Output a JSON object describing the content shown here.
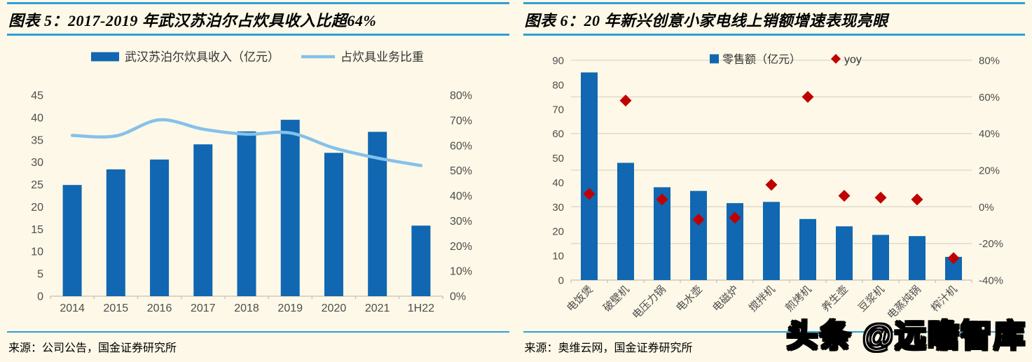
{
  "page": {
    "background": "#FDF8E7",
    "accent_color": "#2E9FD9"
  },
  "panels": [
    {
      "title": "图表 5：2017-2019 年武汉苏泊尔占炊具收入比超64%",
      "source": "来源：公司公告，国金证券研究所"
    },
    {
      "title": "图表 6：20 年新兴创意小家电线上销额增速表现亮眼",
      "source": "来源：奥维云网，国金证券研究所"
    }
  ],
  "watermark": "头条 @远瞻智库",
  "chart_data": [
    {
      "type": "bar",
      "title": "2017-2019 年武汉苏泊尔占炊具收入比超64%",
      "categories": [
        "2014",
        "2015",
        "2016",
        "2017",
        "2018",
        "2019",
        "2020",
        "2021",
        "1H22"
      ],
      "series": [
        {
          "name": "武汉苏泊尔炊具收入（亿元）",
          "type": "bar",
          "axis": "left",
          "color": "#1167B1",
          "values": [
            24.9,
            28.4,
            30.6,
            34.0,
            36.9,
            39.5,
            32.1,
            36.8,
            15.8
          ]
        },
        {
          "name": "占炊具业务比重",
          "type": "line",
          "axis": "right",
          "color": "#85C1EA",
          "values": [
            64,
            63.8,
            70.2,
            66.5,
            64.5,
            65,
            59,
            55,
            52
          ]
        }
      ],
      "left_axis": {
        "min": 0,
        "max": 45,
        "step": 5,
        "suffix": ""
      },
      "right_axis": {
        "min": 0,
        "max": 80,
        "step": 10,
        "suffix": "%"
      },
      "grid": false,
      "legend_position": "top"
    },
    {
      "type": "bar",
      "title": "20 年新兴创意小家电线上销额增速表现亮眼",
      "categories": [
        "电饭煲",
        "破壁机",
        "电压力锅",
        "电水壶",
        "电磁炉",
        "搅拌机",
        "煎烤机",
        "养生壶",
        "豆浆机",
        "电蒸炖锅",
        "榨汁机"
      ],
      "series": [
        {
          "name": "零售额（亿元）",
          "type": "bar",
          "axis": "left",
          "color": "#1167B1",
          "values": [
            85,
            48,
            38,
            36.5,
            31.5,
            32,
            25,
            22,
            18.5,
            18,
            9.5
          ]
        },
        {
          "name": "yoy",
          "type": "scatter",
          "axis": "right",
          "color": "#C00000",
          "values": [
            7,
            58,
            4,
            -7,
            -6,
            12,
            60,
            6,
            5,
            4,
            -28
          ]
        }
      ],
      "left_axis": {
        "min": 0,
        "max": 90,
        "step": 10,
        "suffix": ""
      },
      "right_axis": {
        "min": -40,
        "max": 80,
        "step": 20,
        "suffix": "%"
      },
      "grid": true,
      "legend_position": "top-inside"
    }
  ]
}
